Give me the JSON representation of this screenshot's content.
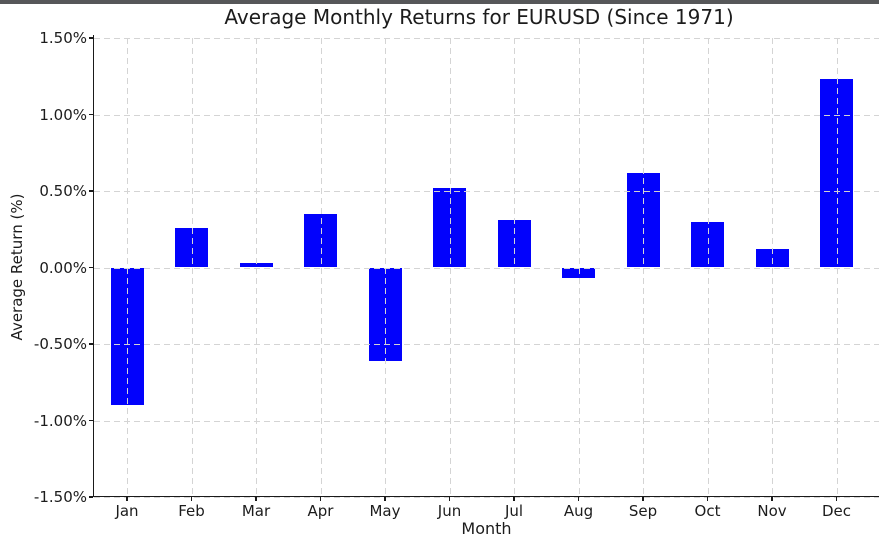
{
  "window": {
    "top_strip_color": "#565759"
  },
  "chart_data": {
    "type": "bar",
    "title": "Average Monthly Returns for EURUSD (Since 1971)",
    "xlabel": "Month",
    "ylabel": "Average Return (%)",
    "categories": [
      "Jan",
      "Feb",
      "Mar",
      "Apr",
      "May",
      "Jun",
      "Jul",
      "Aug",
      "Sep",
      "Oct",
      "Nov",
      "Dec"
    ],
    "values": [
      -0.9,
      0.26,
      0.03,
      0.35,
      -0.61,
      0.52,
      0.31,
      -0.07,
      0.62,
      0.3,
      0.12,
      1.23
    ],
    "ylim": [
      -1.5,
      1.5
    ],
    "ytick_labels": [
      "1.50%",
      "1.00%",
      "0.50%",
      "0.00%",
      "-0.50%",
      "-1.00%",
      "-1.50%"
    ],
    "grid": true,
    "grid_style": "dashed",
    "grid_over_bars": true,
    "legend": "none",
    "bar_color": "#0202fc",
    "axis_color": "#1a1a1a",
    "grid_color": "#d4d4d4",
    "text_color": "#1c1c1c"
  }
}
